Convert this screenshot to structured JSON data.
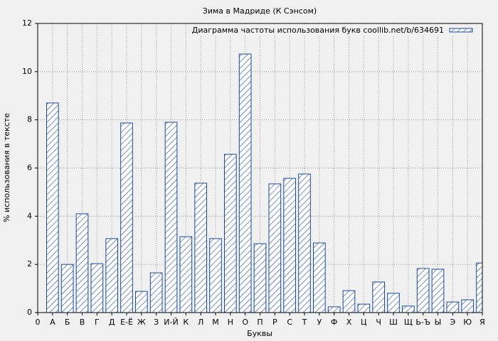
{
  "chart_data": {
    "type": "bar",
    "title": "Зима в Мадриде (К Сэнсом)",
    "xlabel": "Буквы",
    "ylabel": "% использования в тексте",
    "x": [
      1,
      2,
      3,
      4,
      5,
      6,
      7,
      8,
      9,
      10,
      11,
      12,
      13,
      14,
      15,
      16,
      17,
      18,
      19,
      20,
      21,
      22,
      23,
      24,
      25,
      26,
      27,
      28,
      29,
      30
    ],
    "series": [
      {
        "name": "Диаграмма частоты использования букв coollib.net/b/634691",
        "color": "#1a4a9a",
        "values": [
          8.7,
          2.0,
          4.1,
          2.03,
          3.07,
          7.87,
          0.88,
          1.65,
          7.9,
          3.15,
          5.37,
          3.07,
          6.57,
          10.73,
          2.86,
          5.34,
          5.57,
          5.75,
          2.89,
          0.24,
          0.91,
          0.35,
          1.27,
          0.8,
          0.27,
          1.83,
          1.8,
          0.44,
          0.53,
          2.06
        ]
      }
    ],
    "xlim": [
      0,
      30
    ],
    "ylim": [
      0,
      12
    ],
    "xticks": [
      0,
      {
        "value": 1,
        "label": "А"
      },
      {
        "value": 2,
        "label": "Б"
      },
      {
        "value": 3,
        "label": "В"
      },
      {
        "value": 4,
        "label": "Г"
      },
      {
        "value": 5,
        "label": "Д"
      },
      {
        "value": 6,
        "label": "Е-Ё"
      },
      {
        "value": 7,
        "label": "Ж"
      },
      {
        "value": 8,
        "label": "З"
      },
      {
        "value": 9,
        "label": "И-Й"
      },
      {
        "value": 10,
        "label": "К"
      },
      {
        "value": 11,
        "label": "Л"
      },
      {
        "value": 12,
        "label": "М"
      },
      {
        "value": 13,
        "label": "Н"
      },
      {
        "value": 14,
        "label": "О"
      },
      {
        "value": 15,
        "label": "П"
      },
      {
        "value": 16,
        "label": "Р"
      },
      {
        "value": 17,
        "label": "С"
      },
      {
        "value": 18,
        "label": "Т"
      },
      {
        "value": 19,
        "label": "У"
      },
      {
        "value": 20,
        "label": "Ф"
      },
      {
        "value": 21,
        "label": "Х"
      },
      {
        "value": 22,
        "label": "Ц"
      },
      {
        "value": 23,
        "label": "Ч"
      },
      {
        "value": 24,
        "label": "Ш"
      },
      {
        "value": 25,
        "label": "Щ"
      },
      {
        "value": 26,
        "label": "Ь-Ъ"
      },
      {
        "value": 27,
        "label": "Ы"
      },
      {
        "value": 28,
        "label": "Э"
      },
      {
        "value": 29,
        "label": "Ю"
      },
      {
        "value": 30,
        "label": "Я"
      }
    ],
    "yticks": [
      0,
      2,
      4,
      6,
      8,
      10,
      12
    ],
    "grid": true,
    "legend": "upper right"
  }
}
